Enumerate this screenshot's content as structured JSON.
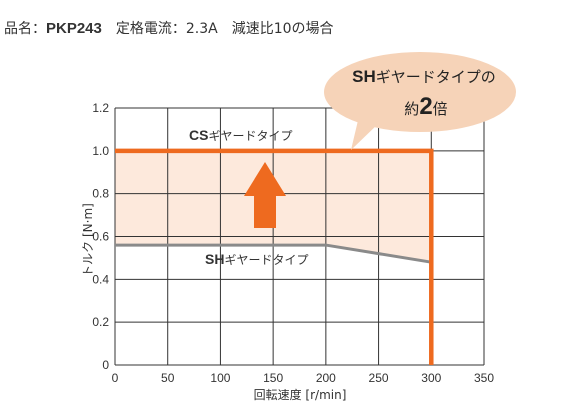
{
  "header": {
    "model_label": "品名：",
    "model": "PKP243",
    "current_label": "定格電流：",
    "current": "2.3A",
    "ratio": "減速比10の場合"
  },
  "callout": {
    "line1_strong": "SH",
    "line1_rest": "ギヤードタイプの",
    "line2_prefix": "約",
    "line2_big": "2",
    "line2_suffix": "倍",
    "fill_color": "#f6d3b8"
  },
  "colors": {
    "cs": "#ee6a1f",
    "sh": "#8a8a8a",
    "band": "#fde9dc",
    "arrow": "#ee6a1f"
  },
  "chart_data": {
    "type": "line",
    "xlabel": "回転速度 [r/min]",
    "ylabel": "トルク [N·m]",
    "xlim": [
      0,
      350
    ],
    "ylim": [
      0,
      1.2
    ],
    "x_ticks": [
      0,
      50,
      100,
      150,
      200,
      250,
      300,
      350
    ],
    "y_ticks": [
      0,
      0.2,
      0.4,
      0.6,
      0.8,
      1.0,
      1.2
    ],
    "y_tick_labels": [
      "0",
      "0.2",
      "0.4",
      "0.6",
      "0.8",
      "1.0",
      "1.2"
    ],
    "grid": true,
    "series": [
      {
        "name_strong": "CS",
        "name_rest": "ギヤードタイプ",
        "points": [
          [
            0,
            1.0
          ],
          [
            300,
            1.0
          ],
          [
            300,
            0
          ]
        ]
      },
      {
        "name_strong": "SH",
        "name_rest": "ギヤードタイプ",
        "points": [
          [
            0,
            0.56
          ],
          [
            200,
            0.56
          ],
          [
            300,
            0.48
          ]
        ]
      }
    ]
  }
}
